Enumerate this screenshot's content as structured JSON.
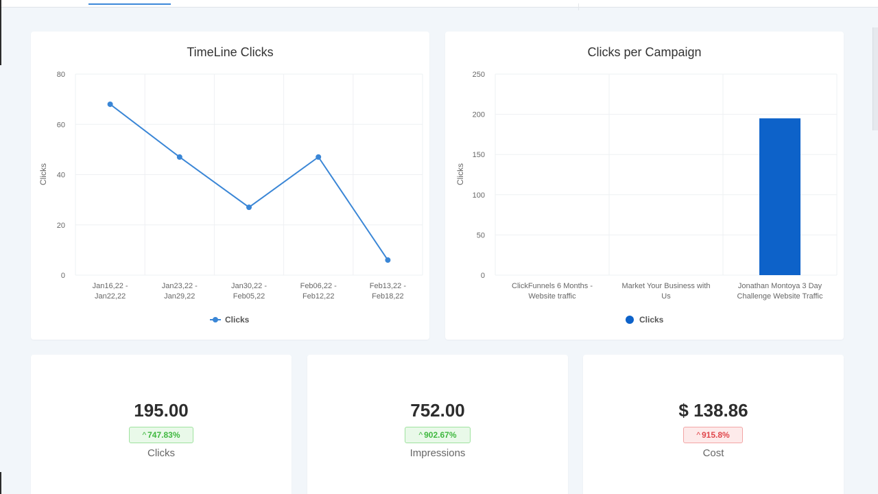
{
  "colors": {
    "line": "#3a86d6",
    "bar": "#0d62c9",
    "grid": "#eef0f3",
    "axis_text": "#666666",
    "up": "#3fb83f",
    "down": "#e0474c"
  },
  "timeline_chart": {
    "title": "TimeLine Clicks",
    "ylabel": "Clicks",
    "legend": "Clicks"
  },
  "campaign_chart": {
    "title": "Clicks per Campaign",
    "ylabel": "Clicks",
    "legend": "Clicks"
  },
  "chart_data": [
    {
      "type": "line",
      "title": "TimeLine Clicks",
      "ylabel": "Clicks",
      "ylim": [
        0,
        80
      ],
      "yticks": [
        0,
        20,
        40,
        60,
        80
      ],
      "grid": true,
      "legend_position": "bottom",
      "categories": [
        [
          "Jan16,22 -",
          "Jan22,22"
        ],
        [
          "Jan23,22 -",
          "Jan29,22"
        ],
        [
          "Jan30,22 -",
          "Feb05,22"
        ],
        [
          "Feb06,22 -",
          "Feb12,22"
        ],
        [
          "Feb13,22 -",
          "Feb18,22"
        ]
      ],
      "series": [
        {
          "name": "Clicks",
          "values": [
            68,
            47,
            27,
            47,
            6
          ]
        }
      ]
    },
    {
      "type": "bar",
      "title": "Clicks per Campaign",
      "ylabel": "Clicks",
      "ylim": [
        0,
        250
      ],
      "yticks": [
        0,
        50,
        100,
        150,
        200,
        250
      ],
      "grid": true,
      "legend_position": "bottom",
      "categories": [
        [
          "ClickFunnels 6 Months -",
          "Website traffic"
        ],
        [
          "Market Your Business with",
          "Us"
        ],
        [
          "Jonathan Montoya 3 Day",
          "Challenge Website Traffic"
        ]
      ],
      "series": [
        {
          "name": "Clicks",
          "values": [
            0,
            0,
            195
          ]
        }
      ]
    }
  ],
  "stats": {
    "clicks": {
      "value": "195.00",
      "change": "747.83%",
      "label": "Clicks"
    },
    "impressions": {
      "value": "752.00",
      "change": "902.67%",
      "label": "Impressions"
    },
    "cost": {
      "value": "$ 138.86",
      "change": "915.8%",
      "label": "Cost"
    }
  },
  "icons": {
    "up_arrow": "^"
  }
}
